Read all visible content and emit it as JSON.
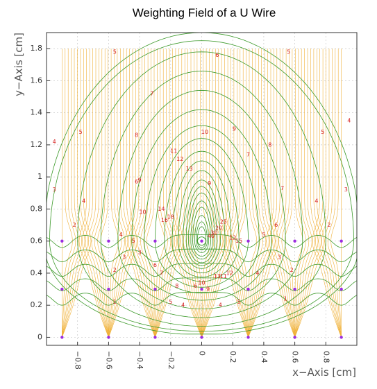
{
  "chart_data": {
    "type": "contour",
    "title": "Weighting Field of a U Wire",
    "xlabel": "x−Axis [cm]",
    "ylabel": "y−Axis [cm]",
    "xlim": [
      -1.0,
      1.0
    ],
    "ylim": [
      -0.05,
      1.9
    ],
    "x_ticks": [
      -0.8,
      -0.6,
      -0.4,
      -0.2,
      0,
      0.2,
      0.4,
      0.6,
      0.8
    ],
    "x_tick_labels": [
      "−0.8",
      "−0.6",
      "−0.4",
      "−0.2",
      "0",
      "0.2",
      "0.4",
      "0.6",
      "0.8"
    ],
    "y_ticks": [
      0,
      0.2,
      0.4,
      0.6,
      0.8,
      1,
      1.2,
      1.4,
      1.6,
      1.8
    ],
    "y_tick_labels": [
      "0",
      "0.2",
      "0.4",
      "0.6",
      "0.8",
      "1",
      "1.2",
      "1.4",
      "1.6",
      "1.8"
    ],
    "grid": true,
    "colors": {
      "field_lines": "#f0b23a",
      "equipotential": "#3c9a2a",
      "contour_labels": "#d62020",
      "wires": "#9b2de0"
    },
    "wires": [
      {
        "x": -0.9,
        "y": 0.6
      },
      {
        "x": -0.6,
        "y": 0.6
      },
      {
        "x": -0.3,
        "y": 0.6
      },
      {
        "x": 0,
        "y": 0.6
      },
      {
        "x": 0.3,
        "y": 0.6
      },
      {
        "x": 0.6,
        "y": 0.6
      },
      {
        "x": 0.9,
        "y": 0.6
      },
      {
        "x": -0.9,
        "y": 0.3
      },
      {
        "x": -0.6,
        "y": 0.3
      },
      {
        "x": -0.3,
        "y": 0.3
      },
      {
        "x": 0,
        "y": 0.3
      },
      {
        "x": 0.3,
        "y": 0.3
      },
      {
        "x": 0.6,
        "y": 0.3
      },
      {
        "x": 0.9,
        "y": 0.3
      },
      {
        "x": -0.9,
        "y": 0
      },
      {
        "x": -0.6,
        "y": 0
      },
      {
        "x": -0.3,
        "y": 0
      },
      {
        "x": 0,
        "y": 0
      },
      {
        "x": 0.3,
        "y": 0
      },
      {
        "x": 0.6,
        "y": 0
      },
      {
        "x": 0.9,
        "y": 0
      }
    ],
    "field_line_top_y": 1.8,
    "field_line_x_range": [
      -0.9,
      0.9
    ],
    "field_line_count": 92,
    "source_wire": {
      "x": 0,
      "y": 0.6
    },
    "contour_levels": [
      {
        "label": "3",
        "rx": 1.02,
        "ry": 1.3
      },
      {
        "label": "4",
        "rx": 0.98,
        "ry": 1.25
      },
      {
        "label": "5",
        "rx": 0.8,
        "ry": 1.18
      },
      {
        "label": "6",
        "rx": 0.65,
        "ry": 1.06
      },
      {
        "label": "7",
        "rx": 0.54,
        "ry": 0.94
      },
      {
        "label": "8",
        "rx": 0.45,
        "ry": 0.82
      },
      {
        "label": "9",
        "rx": 0.37,
        "ry": 0.72
      },
      {
        "label": "10",
        "rx": 0.3,
        "ry": 0.64
      },
      {
        "label": "11",
        "rx": 0.24,
        "ry": 0.56
      },
      {
        "label": "12",
        "rx": 0.19,
        "ry": 0.5
      },
      {
        "label": "13",
        "rx": 0.15,
        "ry": 0.44
      },
      {
        "label": "14",
        "rx": 0.12,
        "ry": 0.38
      },
      {
        "label": "15",
        "rx": 0.1,
        "ry": 0.34
      },
      {
        "label": "16",
        "rx": 0.085,
        "ry": 0.3
      },
      {
        "label": "18",
        "rx": 0.07,
        "ry": 0.25
      },
      {
        "label": "20",
        "rx": 0.058,
        "ry": 0.21
      },
      {
        "label": "25",
        "rx": 0.045,
        "ry": 0.16
      },
      {
        "label": "30",
        "rx": 0.036,
        "ry": 0.12
      },
      {
        "label": "40",
        "rx": 0.028,
        "ry": 0.09
      }
    ],
    "annotations": [
      {
        "text": "6",
        "x": 0.1,
        "y": 1.76
      },
      {
        "text": "5",
        "x": -0.56,
        "y": 1.78
      },
      {
        "text": "5",
        "x": 0.56,
        "y": 1.78
      },
      {
        "text": "7",
        "x": -0.32,
        "y": 1.52
      },
      {
        "text": "8",
        "x": -0.42,
        "y": 1.26
      },
      {
        "text": "9",
        "x": 0.21,
        "y": 1.3
      },
      {
        "text": "10",
        "x": 0.02,
        "y": 1.28
      },
      {
        "text": "11",
        "x": -0.18,
        "y": 1.16
      },
      {
        "text": "12",
        "x": -0.14,
        "y": 1.11
      },
      {
        "text": "13",
        "x": -0.08,
        "y": 1.05
      },
      {
        "text": "6",
        "x": -0.42,
        "y": 0.97
      },
      {
        "text": "7",
        "x": 0.52,
        "y": 0.93
      },
      {
        "text": "8",
        "x": 0.44,
        "y": 1.2
      },
      {
        "text": "9",
        "x": -0.4,
        "y": 0.98
      },
      {
        "text": "10",
        "x": -0.38,
        "y": 0.78
      },
      {
        "text": "4",
        "x": -0.76,
        "y": 0.85
      },
      {
        "text": "4",
        "x": 0.74,
        "y": 0.85
      },
      {
        "text": "3",
        "x": -0.95,
        "y": 0.92
      },
      {
        "text": "3",
        "x": 0.93,
        "y": 0.92
      },
      {
        "text": "2",
        "x": -0.82,
        "y": 0.7
      },
      {
        "text": "2",
        "x": 0.82,
        "y": 0.7
      },
      {
        "text": "6",
        "x": 0.48,
        "y": 0.7
      },
      {
        "text": "5",
        "x": 0.4,
        "y": 0.64
      },
      {
        "text": "4",
        "x": -0.52,
        "y": 0.64
      },
      {
        "text": "5",
        "x": -0.44,
        "y": 0.6
      },
      {
        "text": "6",
        "x": -0.3,
        "y": 0.45
      },
      {
        "text": "7",
        "x": -0.26,
        "y": 0.4
      },
      {
        "text": "8",
        "x": -0.16,
        "y": 0.32
      },
      {
        "text": "1",
        "x": -0.56,
        "y": 0.22
      },
      {
        "text": "1",
        "x": 0.54,
        "y": 0.24
      },
      {
        "text": "2",
        "x": -0.56,
        "y": 0.42
      },
      {
        "text": "2",
        "x": 0.58,
        "y": 0.42
      },
      {
        "text": "3",
        "x": -0.5,
        "y": 0.5
      },
      {
        "text": "3",
        "x": 0.5,
        "y": 0.5
      },
      {
        "text": "3",
        "x": -0.4,
        "y": 0.53
      },
      {
        "text": "4",
        "x": 0.36,
        "y": 0.4
      },
      {
        "text": "5",
        "x": -0.2,
        "y": 0.22
      },
      {
        "text": "5",
        "x": 0.24,
        "y": 0.22
      },
      {
        "text": "4",
        "x": -0.12,
        "y": 0.2
      },
      {
        "text": "4",
        "x": 0.12,
        "y": 0.2
      },
      {
        "text": "6",
        "x": -0.04,
        "y": 0.32
      },
      {
        "text": "9",
        "x": 0.04,
        "y": 0.3
      },
      {
        "text": "10",
        "x": 0.0,
        "y": 0.34
      },
      {
        "text": "11",
        "x": 0.14,
        "y": 0.38
      },
      {
        "text": "12",
        "x": 0.18,
        "y": 0.4
      },
      {
        "text": "13",
        "x": 0.1,
        "y": 0.38
      },
      {
        "text": "14",
        "x": -0.26,
        "y": 0.8
      },
      {
        "text": "16",
        "x": -0.24,
        "y": 0.73
      },
      {
        "text": "18",
        "x": -0.2,
        "y": 0.75
      },
      {
        "text": "20",
        "x": 0.11,
        "y": 0.68
      },
      {
        "text": "25",
        "x": 0.14,
        "y": 0.72
      },
      {
        "text": "30",
        "x": 0.08,
        "y": 0.65
      },
      {
        "text": "40",
        "x": 0.06,
        "y": 0.63
      },
      {
        "text": "15",
        "x": 0.24,
        "y": 0.6
      },
      {
        "text": "12",
        "x": 0.2,
        "y": 0.62
      },
      {
        "text": "9",
        "x": 0.05,
        "y": 0.96
      },
      {
        "text": "7",
        "x": 0.3,
        "y": 1.14
      },
      {
        "text": "5",
        "x": -0.78,
        "y": 1.28
      },
      {
        "text": "5",
        "x": 0.78,
        "y": 1.28
      },
      {
        "text": "4",
        "x": -0.95,
        "y": 1.22
      },
      {
        "text": "4",
        "x": 0.95,
        "y": 1.35
      }
    ]
  }
}
